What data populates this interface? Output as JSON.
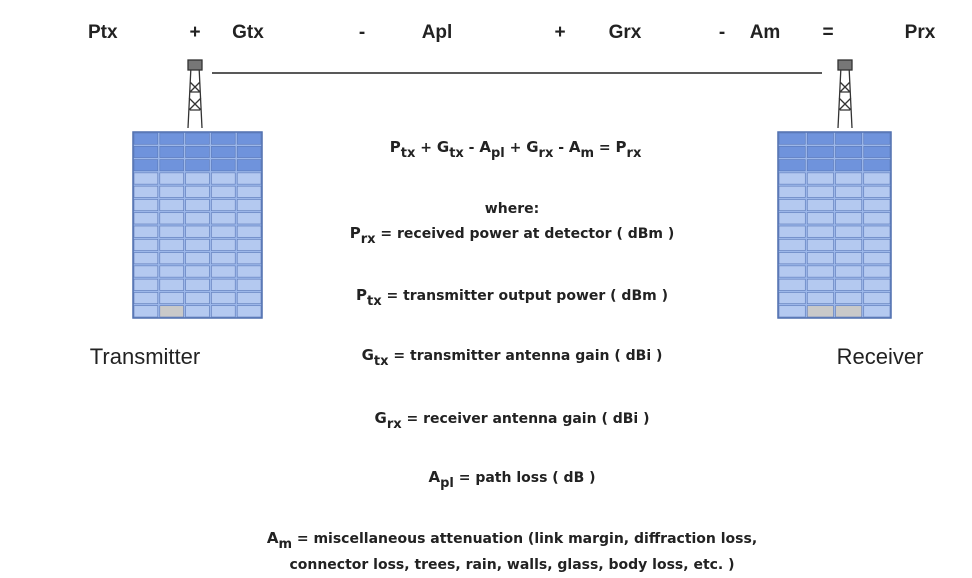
{
  "top_equation": [
    "Ptx",
    "+",
    "Gtx",
    "-",
    "Apl",
    "+",
    "Grx",
    "-",
    "Am",
    "=",
    "Prx"
  ],
  "formula": {
    "terms": [
      {
        "base": "P",
        "sub": "tx"
      },
      {
        "base": "G",
        "sub": "tx"
      },
      {
        "base": "A",
        "sub": "pl"
      },
      {
        "base": "G",
        "sub": "rx"
      },
      {
        "base": "A",
        "sub": "m"
      },
      {
        "base": "P",
        "sub": "rx"
      }
    ],
    "operators": [
      "+",
      "-",
      "+",
      "-",
      "="
    ]
  },
  "where": "where:",
  "definitions": [
    {
      "base": "P",
      "sub": "rx",
      "text": "= received power at detector ( dBm )"
    },
    {
      "base": "P",
      "sub": "tx",
      "text": "= transmitter output power ( dBm )"
    },
    {
      "base": "G",
      "sub": "tx",
      "text": "= transmitter antenna gain ( dBi )"
    },
    {
      "base": "G",
      "sub": "rx",
      "text": "= receiver antenna gain ( dBi )"
    },
    {
      "base": "A",
      "sub": "pl",
      "text": "= path loss ( dB )"
    },
    {
      "base": "A",
      "sub": "m",
      "text": "= miscellaneous attenuation (link margin, diffraction loss,",
      "continuation": "connector loss, trees, rain, walls, glass, body loss, etc. )"
    }
  ],
  "labels": {
    "transmitter": "Transmitter",
    "receiver": "Receiver"
  }
}
